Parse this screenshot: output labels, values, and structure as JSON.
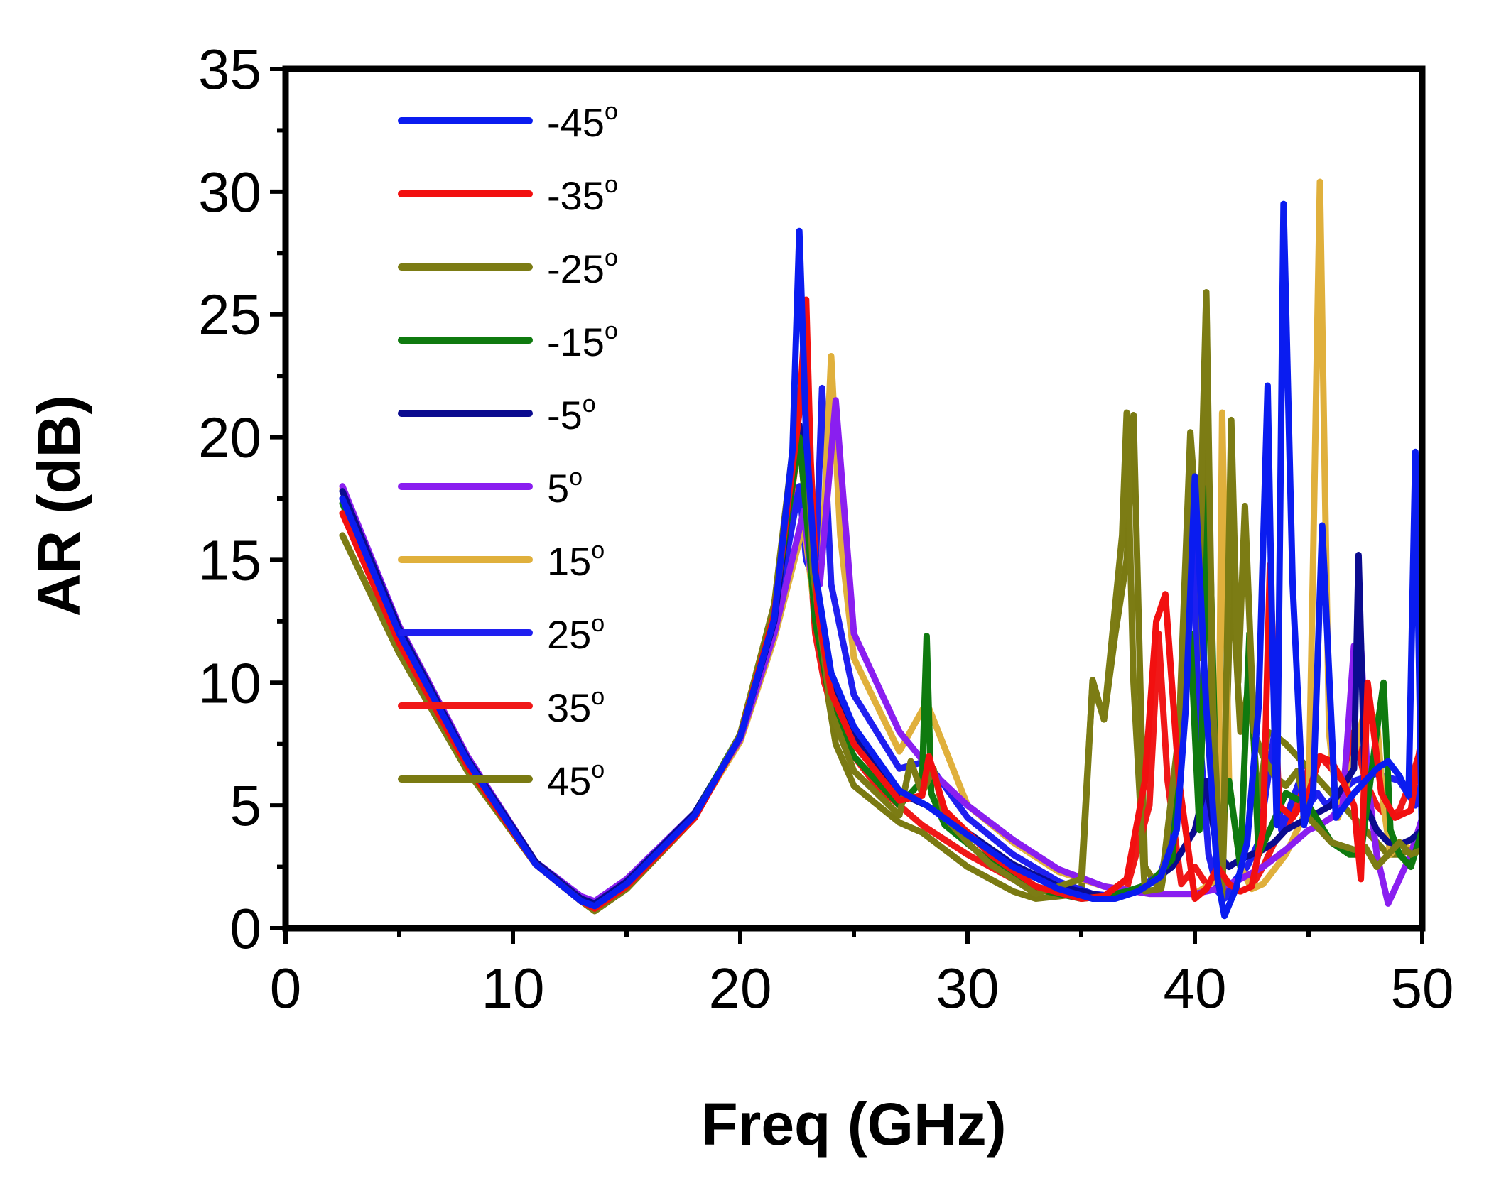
{
  "chart_data": {
    "type": "line",
    "title": "",
    "xlabel": "Freq (GHz)",
    "ylabel": "AR (dB)",
    "xlim": [
      0,
      50
    ],
    "ylim": [
      0,
      35
    ],
    "xticks": [
      0,
      10,
      20,
      30,
      40,
      50
    ],
    "yticks": [
      0,
      5,
      10,
      15,
      20,
      25,
      30,
      35
    ],
    "xtick_labels": [
      "0",
      "10",
      "20",
      "30",
      "40",
      "50"
    ],
    "ytick_labels": [
      "0",
      "5",
      "10",
      "15",
      "20",
      "25",
      "30",
      "35"
    ],
    "grid": false,
    "legend_position": "top-left",
    "series": [
      {
        "name": "-45",
        "unit": "o",
        "color": "#0a1cf0",
        "x": [
          2.5,
          5,
          8,
          11,
          13,
          13.6,
          15,
          18,
          20,
          21.5,
          22.3,
          22.6,
          22.9,
          23.3,
          24,
          25,
          27,
          28.2,
          30,
          32,
          34,
          35.5,
          36.5,
          37.5,
          38.5,
          39.2,
          39.6,
          40,
          40.5,
          41,
          41.3,
          41.8,
          42.3,
          42.8,
          43.2,
          43.4,
          43.6,
          43.9,
          44.3,
          44.8,
          45.2,
          45.6,
          46.2,
          47,
          47.5,
          48,
          48.5,
          49,
          49.4,
          49.7,
          50
        ],
        "y": [
          17.5,
          12,
          6.8,
          2.6,
          1.1,
          0.9,
          1.8,
          4.6,
          7.8,
          12.6,
          19.5,
          28.4,
          20,
          14.5,
          10.4,
          8.2,
          5.6,
          5,
          3.8,
          2.5,
          1.6,
          1.2,
          1.2,
          1.5,
          2.1,
          4,
          9,
          18.4,
          9,
          2,
          0.5,
          1.6,
          3.5,
          9,
          22.1,
          12,
          4.2,
          29.5,
          14,
          4.2,
          5.5,
          16.4,
          4.5,
          5.5,
          6,
          6.5,
          6.8,
          6.2,
          5.4,
          19.4,
          3
        ]
      },
      {
        "name": "-35",
        "unit": "o",
        "color": "#f21010",
        "x": [
          2.5,
          5,
          8,
          11,
          13,
          13.6,
          15,
          18,
          20,
          21.5,
          22.6,
          22.9,
          23.1,
          23.4,
          24,
          25,
          27,
          28,
          28.3,
          29,
          31,
          33,
          35,
          36,
          37,
          37.8,
          38.3,
          38.7,
          39.3,
          40,
          40.5,
          41,
          41.5,
          42,
          42.5,
          43,
          43.3,
          43.7,
          44.3,
          45,
          45.5,
          46,
          46.5,
          47,
          47.3,
          47.6,
          48.2,
          48.8,
          49.5,
          50
        ],
        "y": [
          16.9,
          11.6,
          6.6,
          2.6,
          1.1,
          0.8,
          1.7,
          4.5,
          7.8,
          12.8,
          21,
          25.6,
          19,
          13,
          9.6,
          7.5,
          5.2,
          5.4,
          7,
          4.8,
          3,
          1.7,
          1.2,
          1.3,
          2,
          6,
          12.5,
          13.6,
          6,
          1.2,
          1.6,
          2.5,
          1.8,
          1.5,
          1.7,
          4,
          14.8,
          5,
          4.5,
          5.5,
          7,
          6.8,
          6,
          5,
          2,
          10,
          5.5,
          4.5,
          4.8,
          8
        ]
      },
      {
        "name": "-25",
        "unit": "o",
        "color": "#7c7c14",
        "x": [
          2.5,
          5,
          8,
          11,
          13,
          13.6,
          15,
          18,
          20,
          21.5,
          22.5,
          22.8,
          23.2,
          24,
          25,
          27,
          27.5,
          28,
          28.5,
          29,
          30,
          31,
          33,
          35,
          35.5,
          36,
          36.8,
          37,
          37.3,
          37.8,
          38.5,
          39.3,
          39.8,
          40.2,
          40.5,
          40.8,
          41.2,
          41.6,
          41.9,
          42.2,
          42.6,
          43,
          43.5,
          44,
          44.5,
          45,
          46,
          47,
          47.5,
          48,
          48.5,
          49,
          49.5,
          50
        ],
        "y": [
          16,
          11.2,
          6.4,
          2.6,
          1.1,
          0.7,
          1.6,
          4.5,
          7.9,
          13.2,
          20.5,
          23,
          14.5,
          8.8,
          6.4,
          4.6,
          6.8,
          5.5,
          6.5,
          4.5,
          3.5,
          2.6,
          1.4,
          2,
          10,
          8.5,
          16,
          21,
          10,
          1.5,
          1.6,
          8,
          20.2,
          15,
          25.9,
          9,
          1,
          20.7,
          10,
          17.2,
          8,
          7,
          6.2,
          5.8,
          6.4,
          4.5,
          3.5,
          3.2,
          3.3,
          2.5,
          3,
          3.5,
          3,
          3.2
        ]
      },
      {
        "name": "-15",
        "unit": "o",
        "color": "#0f7a0f",
        "x": [
          2.5,
          5,
          8,
          11,
          13,
          13.6,
          15,
          18,
          20,
          21.5,
          22.6,
          22.9,
          23.3,
          24,
          25,
          27,
          28,
          28.2,
          28.4,
          29,
          31,
          33,
          35,
          36,
          37,
          38,
          39,
          39.8,
          40.2,
          40.6,
          41,
          41.5,
          42,
          42.4,
          42.8,
          43.3,
          44,
          45,
          46,
          46.8,
          47.3,
          48,
          48.3,
          48.6,
          49,
          49.5,
          50
        ],
        "y": [
          17.3,
          11.8,
          6.7,
          2.6,
          1.1,
          0.8,
          1.7,
          4.6,
          7.9,
          13,
          20,
          17,
          12.5,
          9,
          7,
          5,
          6,
          11.9,
          5.5,
          4.2,
          2.7,
          1.6,
          1.2,
          1.3,
          1.5,
          1.8,
          2.8,
          12,
          4,
          18,
          3,
          6,
          2.5,
          12,
          3,
          4,
          5.5,
          5,
          3.5,
          3,
          3,
          8,
          10,
          4,
          3,
          2.5,
          4
        ]
      },
      {
        "name": "-5",
        "unit": "o",
        "color": "#0b0b8f",
        "x": [
          2.5,
          5,
          8,
          11,
          13,
          13.6,
          15,
          18,
          20,
          21.5,
          22.6,
          22.9,
          23.3,
          24,
          25,
          27,
          28.2,
          30,
          32,
          34,
          36,
          37,
          38,
          39,
          40,
          40.5,
          41,
          41.5,
          42,
          42.5,
          43,
          43.5,
          44,
          45,
          46,
          47,
          47.2,
          47.5,
          48,
          48.5,
          49,
          49.5,
          50
        ],
        "y": [
          17.8,
          12.2,
          6.9,
          2.7,
          1.2,
          1,
          1.9,
          4.7,
          7.8,
          12.5,
          20.5,
          18,
          13.5,
          10,
          7.8,
          5.5,
          5,
          3.9,
          2.6,
          1.7,
          1.3,
          1.4,
          1.8,
          2.5,
          4,
          6,
          3,
          2.5,
          2.8,
          3,
          3.2,
          3.5,
          4,
          4.5,
          5,
          6.5,
          15.2,
          5,
          4,
          3.5,
          3.4,
          3.6,
          4
        ]
      },
      {
        "name": "5",
        "unit": "o",
        "color": "#8a1ef0",
        "x": [
          2.5,
          5,
          8,
          11,
          13,
          13.6,
          15,
          18,
          20,
          21.5,
          22.8,
          23.1,
          23.5,
          24.2,
          25,
          27,
          28.5,
          30,
          32,
          34,
          36,
          38,
          40,
          41,
          42,
          43,
          44,
          45,
          45.5,
          46,
          46.5,
          47,
          47.3,
          47.6,
          48,
          48.5,
          49,
          49.5,
          50
        ],
        "y": [
          18,
          12.3,
          7,
          2.7,
          1.3,
          1.1,
          2,
          4.7,
          7.7,
          12,
          17,
          14.5,
          14,
          21.5,
          12,
          8,
          6.3,
          5,
          3.6,
          2.4,
          1.7,
          1.4,
          1.4,
          1.6,
          2,
          2.5,
          3.2,
          4,
          4.2,
          4.5,
          5,
          11.5,
          11.6,
          6,
          3,
          1,
          2,
          3,
          4.5
        ]
      },
      {
        "name": "15",
        "unit": "o",
        "color": "#e0b03c",
        "x": [
          2.5,
          5,
          8,
          11,
          13,
          13.6,
          15,
          18,
          20,
          21.5,
          22.8,
          23.2,
          23.6,
          24,
          24.4,
          25,
          27,
          28.2,
          30,
          32,
          34,
          36,
          38,
          40,
          41,
          41.2,
          41.5,
          42,
          42.5,
          43,
          44,
          45,
          45.2,
          45.5,
          45.9,
          46.3,
          47,
          47.5,
          48,
          48.3,
          48.6,
          49,
          49.5,
          50
        ],
        "y": [
          17.9,
          12.3,
          7,
          2.7,
          1.2,
          1,
          1.9,
          4.6,
          7.6,
          11.8,
          16.5,
          13.5,
          15,
          23.3,
          16,
          11,
          7.2,
          9.2,
          5,
          3.5,
          2.3,
          1.7,
          1.4,
          1.4,
          2,
          21,
          6,
          2.5,
          1.6,
          1.8,
          3,
          5,
          15,
          30.4,
          8,
          4.5,
          7,
          9,
          8.5,
          5,
          3,
          3.5,
          3.2,
          3.8
        ]
      },
      {
        "name": "25",
        "unit": "o",
        "color": "#1f1ff0",
        "x": [
          2.5,
          5,
          8,
          11,
          13,
          13.6,
          15,
          18,
          20,
          21.5,
          22.6,
          22.9,
          23.3,
          23.6,
          24,
          25,
          27,
          28.2,
          30,
          32,
          34,
          35.5,
          36.5,
          37.5,
          38.5,
          39.3,
          39.8,
          40.2,
          40.6,
          41,
          41.3,
          41.8,
          42.3,
          42.8,
          43.2,
          43.5,
          43.8,
          44.2,
          44.6,
          45,
          45.4,
          45.8,
          46.3,
          47,
          48,
          49,
          49.7,
          50
        ],
        "y": [
          17.5,
          12,
          6.8,
          2.6,
          1.1,
          0.9,
          1.8,
          4.6,
          7.8,
          12.4,
          18,
          15,
          14,
          22,
          14,
          9.5,
          6.5,
          6.8,
          4.5,
          3,
          1.9,
          1.4,
          1.3,
          1.6,
          2.2,
          5,
          18,
          8,
          3,
          1.5,
          1.2,
          2,
          2.5,
          3.5,
          6,
          8,
          4,
          5,
          6,
          5,
          5.5,
          5,
          5.5,
          6,
          6.3,
          6,
          5,
          6
        ]
      },
      {
        "name": "35",
        "unit": "o",
        "color": "#f01818",
        "x": [
          2.5,
          5,
          8,
          11,
          13,
          13.6,
          15,
          18,
          20,
          21.5,
          22.6,
          23,
          23.3,
          23.7,
          24.5,
          26,
          28,
          30,
          32,
          34,
          36,
          37,
          38,
          38.4,
          38.8,
          39.4,
          40,
          40.5,
          41,
          41.5,
          42,
          42.5,
          43,
          43.5,
          44,
          44.5,
          45,
          45.5,
          46,
          46.5,
          47,
          47.5,
          48,
          48.5,
          49,
          49.5,
          50
        ],
        "y": [
          16.9,
          11.6,
          6.6,
          2.6,
          1.1,
          0.8,
          1.7,
          4.5,
          7.8,
          12.6,
          20,
          16,
          12,
          10,
          7.6,
          5.8,
          4.2,
          3,
          2,
          1.4,
          1.3,
          1.6,
          5,
          12,
          6,
          1.8,
          2.5,
          1.8,
          2,
          1.6,
          1.5,
          1.7,
          2.5,
          3.5,
          4,
          5,
          6.5,
          7,
          6.5,
          6,
          8,
          6,
          5,
          4.5,
          4.8,
          6,
          7.5
        ]
      },
      {
        "name": "45",
        "unit": "o",
        "color": "#7a7a12",
        "x": [
          2.5,
          5,
          8,
          11,
          13,
          13.6,
          15,
          18,
          20,
          21.5,
          22.5,
          22.8,
          23.1,
          23.5,
          24.2,
          25,
          27,
          28,
          30,
          32,
          33,
          35,
          35.5,
          36,
          36.5,
          37,
          37.3,
          37.8,
          38.5,
          39.3,
          39.8,
          40.2,
          40.5,
          40.8,
          41.2,
          41.6,
          42,
          42.4,
          42.8,
          43.2,
          43.6,
          44,
          44.5,
          45,
          45.5,
          46,
          46.5,
          47,
          47.5,
          48,
          48.5,
          49,
          49.5,
          50
        ],
        "y": [
          16,
          11.2,
          6.4,
          2.6,
          1.1,
          0.7,
          1.6,
          4.5,
          7.9,
          13.2,
          21,
          22.9,
          17,
          11.5,
          7.5,
          5.8,
          4.3,
          3.9,
          2.5,
          1.5,
          1.2,
          1.4,
          10.1,
          8.5,
          12,
          15,
          20.9,
          2.5,
          1.5,
          6,
          20,
          11,
          25.9,
          5,
          1.2,
          15,
          8,
          10,
          5,
          8,
          7.8,
          7.5,
          7,
          6.5,
          6,
          5.5,
          5,
          4.5,
          4,
          3.5,
          3,
          3,
          3.2,
          3.8
        ]
      }
    ]
  }
}
